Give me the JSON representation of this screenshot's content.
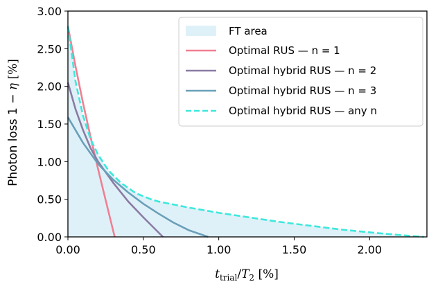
{
  "chart_data": {
    "type": "line",
    "xlabel": "t_trial/T_2 [%]",
    "ylabel": "Photon loss 1 − η [%]",
    "xlabel_parts": {
      "t": "t",
      "sub": "trial",
      "slash": "/",
      "T": "T",
      "sub2": "2",
      "unit": " [%]"
    },
    "ylabel_parts": {
      "prefix": "Photon loss 1 ",
      "minus": "− ",
      "eta": "η",
      "unit": " [%]"
    },
    "xlim": [
      0,
      2.38
    ],
    "ylim": [
      0,
      3.0
    ],
    "xticks": [
      "0.00",
      "0.50",
      "1.00",
      "1.50",
      "2.00"
    ],
    "xtick_values": [
      0,
      0.5,
      1.0,
      1.5,
      2.0
    ],
    "yticks": [
      "0.00",
      "0.50",
      "1.00",
      "1.50",
      "2.00",
      "2.50",
      "3.00"
    ],
    "ytick_values": [
      0,
      0.5,
      1.0,
      1.5,
      2.0,
      2.5,
      3.0
    ],
    "grid": false,
    "legend_position": "top-right",
    "area": {
      "name": "FT area",
      "color": "#dff1f8",
      "x": [
        0,
        0.05,
        0.1,
        0.15,
        0.2,
        0.27,
        0.35,
        0.45,
        0.55,
        0.6,
        0.8,
        1.0,
        1.2,
        1.4,
        1.6,
        1.8,
        2.0,
        2.2,
        2.36
      ],
      "y": [
        2.8,
        2.07,
        1.61,
        1.3,
        1.09,
        0.88,
        0.72,
        0.58,
        0.5,
        0.47,
        0.39,
        0.32,
        0.26,
        0.2,
        0.15,
        0.1,
        0.06,
        0.025,
        0.0
      ]
    },
    "series": [
      {
        "name": "Optimal RUS — n = 1",
        "color": "#f07f91",
        "dash": "solid",
        "x": [
          0,
          0.05,
          0.1,
          0.15,
          0.2,
          0.25,
          0.31
        ],
        "y": [
          2.8,
          2.27,
          1.78,
          1.33,
          0.9,
          0.49,
          0.0
        ]
      },
      {
        "name": "Optimal hybrid RUS — n = 2",
        "color": "#8a7ba3",
        "dash": "solid",
        "x": [
          0,
          0.05,
          0.1,
          0.15,
          0.2,
          0.3,
          0.4,
          0.5,
          0.63
        ],
        "y": [
          2.05,
          1.7,
          1.42,
          1.18,
          1.0,
          0.72,
          0.47,
          0.26,
          0.0
        ]
      },
      {
        "name": "Optimal hybrid RUS — n = 3",
        "color": "#6a9fb8",
        "dash": "solid",
        "x": [
          0,
          0.1,
          0.2,
          0.3,
          0.4,
          0.5,
          0.6,
          0.7,
          0.8,
          0.93
        ],
        "y": [
          1.59,
          1.25,
          0.97,
          0.76,
          0.59,
          0.44,
          0.31,
          0.19,
          0.09,
          0.0
        ]
      },
      {
        "name": "Optimal hybrid RUS — any n",
        "color": "#3de8dc",
        "dash": "dashed",
        "x": [
          0,
          0.05,
          0.1,
          0.15,
          0.2,
          0.27,
          0.35,
          0.45,
          0.55,
          0.6,
          0.8,
          1.0,
          1.2,
          1.4,
          1.6,
          1.8,
          2.0,
          2.2,
          2.36
        ],
        "y": [
          2.8,
          2.07,
          1.61,
          1.3,
          1.09,
          0.88,
          0.72,
          0.58,
          0.5,
          0.47,
          0.39,
          0.32,
          0.26,
          0.2,
          0.15,
          0.1,
          0.06,
          0.025,
          0.0
        ]
      }
    ]
  }
}
